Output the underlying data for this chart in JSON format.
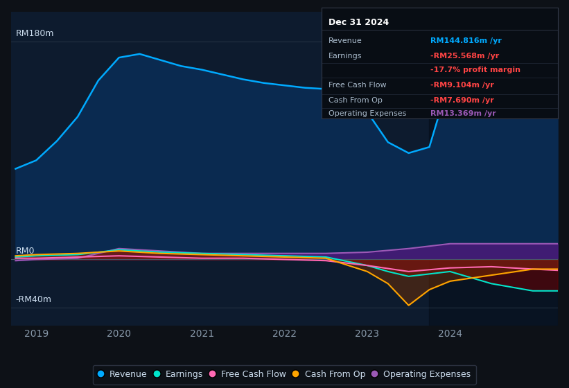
{
  "bg_color": "#0d1117",
  "plot_bg_color": "#0d1b2e",
  "ylabel_top": "RM180m",
  "ylabel_zero": "RM0",
  "ylabel_bottom": "-RM40m",
  "ylim": [
    -55,
    205
  ],
  "xlim": [
    2018.7,
    2025.3
  ],
  "xtick_labels": [
    "2019",
    "2020",
    "2021",
    "2022",
    "2023",
    "2024"
  ],
  "xtick_positions": [
    2019,
    2020,
    2021,
    2022,
    2023,
    2024
  ],
  "highlight_x_start": 2023.75,
  "highlight_x_end": 2025.3,
  "revenue_color": "#00aaff",
  "revenue_fill": "#0a2a50",
  "earnings_color": "#00e5cc",
  "fcf_color": "#ff69b4",
  "cashop_color": "#ffa500",
  "opex_color": "#9b59b6",
  "legend_items": [
    "Revenue",
    "Earnings",
    "Free Cash Flow",
    "Cash From Op",
    "Operating Expenses"
  ],
  "legend_colors": [
    "#00aaff",
    "#00e5cc",
    "#ff69b4",
    "#ffa500",
    "#9b59b6"
  ],
  "info_box": {
    "title": "Dec 31 2024",
    "rows": [
      {
        "label": "Revenue",
        "value": "RM144.816m /yr",
        "value_color": "#00aaff"
      },
      {
        "label": "Earnings",
        "value": "-RM25.568m /yr",
        "value_color": "#ff4444"
      },
      {
        "label": "",
        "value": "-17.7% profit margin",
        "value_color": "#ff4444"
      },
      {
        "label": "Free Cash Flow",
        "value": "-RM9.104m /yr",
        "value_color": "#ff4444"
      },
      {
        "label": "Cash From Op",
        "value": "-RM7.690m /yr",
        "value_color": "#ff4444"
      },
      {
        "label": "Operating Expenses",
        "value": "RM13.369m /yr",
        "value_color": "#9b59b6"
      }
    ]
  },
  "revenue_x": [
    2018.75,
    2019.0,
    2019.25,
    2019.5,
    2019.75,
    2020.0,
    2020.25,
    2020.5,
    2020.75,
    2021.0,
    2021.25,
    2021.5,
    2021.75,
    2022.0,
    2022.25,
    2022.5,
    2022.75,
    2023.0,
    2023.25,
    2023.5,
    2023.75,
    2024.0,
    2024.25,
    2024.5,
    2024.75,
    2025.0,
    2025.3
  ],
  "revenue_y": [
    75,
    82,
    98,
    118,
    148,
    167,
    170,
    165,
    160,
    157,
    153,
    149,
    146,
    144,
    142,
    141,
    139,
    122,
    97,
    88,
    93,
    150,
    153,
    151,
    146,
    146,
    146
  ],
  "earnings_x": [
    2018.75,
    2019.0,
    2019.5,
    2020.0,
    2020.5,
    2021.0,
    2021.5,
    2022.0,
    2022.5,
    2023.0,
    2023.25,
    2023.5,
    2023.75,
    2024.0,
    2024.5,
    2025.0,
    2025.3
  ],
  "earnings_y": [
    2,
    3,
    4,
    8,
    6,
    5,
    4,
    3,
    2,
    -5,
    -10,
    -14,
    -12,
    -10,
    -20,
    -26,
    -26
  ],
  "fcf_x": [
    2018.75,
    2019.0,
    2019.5,
    2020.0,
    2020.5,
    2021.0,
    2021.5,
    2022.0,
    2022.5,
    2023.0,
    2023.5,
    2024.0,
    2024.5,
    2025.0,
    2025.3
  ],
  "fcf_y": [
    1,
    1,
    2,
    3,
    2,
    1,
    1,
    0,
    -1,
    -5,
    -10,
    -7,
    -6,
    -8,
    -9
  ],
  "cashop_x": [
    2018.75,
    2019.0,
    2019.5,
    2020.0,
    2020.5,
    2021.0,
    2021.5,
    2022.0,
    2022.5,
    2023.0,
    2023.25,
    2023.5,
    2023.75,
    2024.0,
    2024.5,
    2025.0,
    2025.3
  ],
  "cashop_y": [
    3,
    4,
    5,
    7,
    5,
    4,
    3,
    2,
    1,
    -10,
    -20,
    -38,
    -25,
    -18,
    -13,
    -8,
    -8
  ],
  "opex_x": [
    2018.75,
    2019.0,
    2019.5,
    2020.0,
    2020.5,
    2021.0,
    2021.5,
    2022.0,
    2022.5,
    2023.0,
    2023.5,
    2024.0,
    2024.5,
    2025.0,
    2025.3
  ],
  "opex_y": [
    -1,
    0,
    1,
    9,
    7,
    5,
    5,
    5,
    5,
    6,
    9,
    13,
    13,
    13,
    13
  ]
}
